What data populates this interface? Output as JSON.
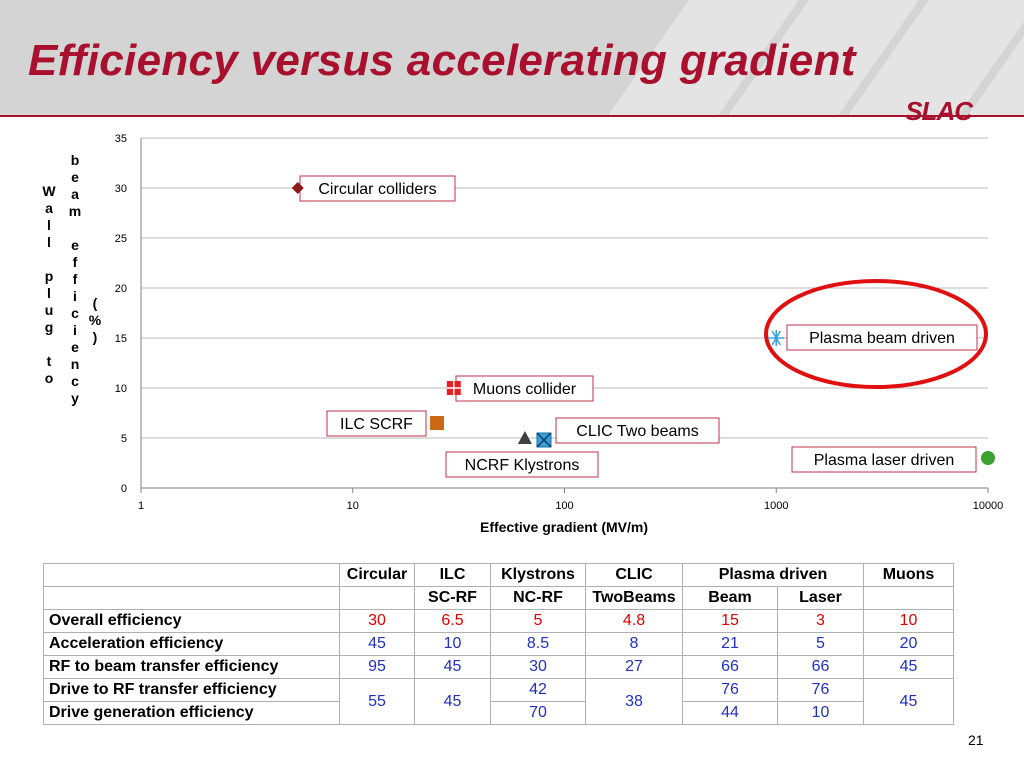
{
  "slide": {
    "title": "Efficiency versus accelerating gradient",
    "logo_text": "SLAC",
    "page_number": "21"
  },
  "chart_data": {
    "type": "scatter",
    "x_scale": "log",
    "xlim": [
      1,
      10000
    ],
    "ylim": [
      0,
      35
    ],
    "x_ticks": [
      1,
      10,
      100,
      1000,
      10000
    ],
    "x_tick_labels": [
      "1",
      "10",
      "100",
      "1000",
      "10000"
    ],
    "y_ticks": [
      0,
      5,
      10,
      15,
      20,
      25,
      30,
      35
    ],
    "y_tick_labels": [
      "0",
      "5",
      "10",
      "15",
      "20",
      "25",
      "30",
      "35"
    ],
    "xlabel": "Effective gradient (MV/m)",
    "ylabel_parts": [
      "Wall plug to",
      "beam efficiency",
      "(%)"
    ],
    "grid": "horizontal",
    "points": [
      {
        "label": "Circular colliders",
        "x": 5.5,
        "y": 30,
        "marker": "diamond",
        "color": "#8b1a1a"
      },
      {
        "label": "ILC SCRF",
        "x": 25,
        "y": 6.5,
        "marker": "square",
        "color": "#cc6a14"
      },
      {
        "label": "Muons collider",
        "x": 30,
        "y": 10,
        "marker": "square-cross",
        "color": "#e62020"
      },
      {
        "label": "NCRF Klystrons",
        "x": 65,
        "y": 5,
        "marker": "triangle",
        "color": "#404040"
      },
      {
        "label": "CLIC Two beams",
        "x": 80,
        "y": 4.8,
        "marker": "square-x",
        "color": "#3aa0dc"
      },
      {
        "label": "Plasma beam driven",
        "x": 1000,
        "y": 15,
        "marker": "asterisk",
        "color": "#3aa0dc"
      },
      {
        "label": "Plasma laser driven",
        "x": 10000,
        "y": 3,
        "marker": "circle",
        "color": "#3aa030"
      }
    ],
    "highlight": {
      "target": "Plasma beam driven",
      "shape": "ellipse",
      "color": "#e01010"
    }
  },
  "table": {
    "header1": [
      "Circular",
      "ILC",
      "Klystrons",
      "CLIC",
      "Plasma driven",
      "Muons"
    ],
    "header2": [
      "SC-RF",
      "NC-RF",
      "TwoBeams",
      "Beam",
      "Laser"
    ],
    "rows": [
      {
        "label": "Overall efficiency",
        "values": [
          "30",
          "6.5",
          "5",
          "4.8",
          "15",
          "3",
          "10"
        ]
      },
      {
        "label": "Acceleration efficiency",
        "values": [
          "45",
          "10",
          "8.5",
          "8",
          "21",
          "5",
          "20"
        ]
      },
      {
        "label": "RF to beam transfer efficiency",
        "values": [
          "95",
          "45",
          "30",
          "27",
          "66",
          "66",
          "45"
        ]
      },
      {
        "label": "Drive to RF transfer efficiency",
        "values": [
          "55",
          "45",
          "42",
          "38",
          "76",
          "76",
          "45"
        ]
      },
      {
        "label": "Drive generation efficiency",
        "values": [
          "70",
          "44",
          "10"
        ]
      }
    ]
  }
}
